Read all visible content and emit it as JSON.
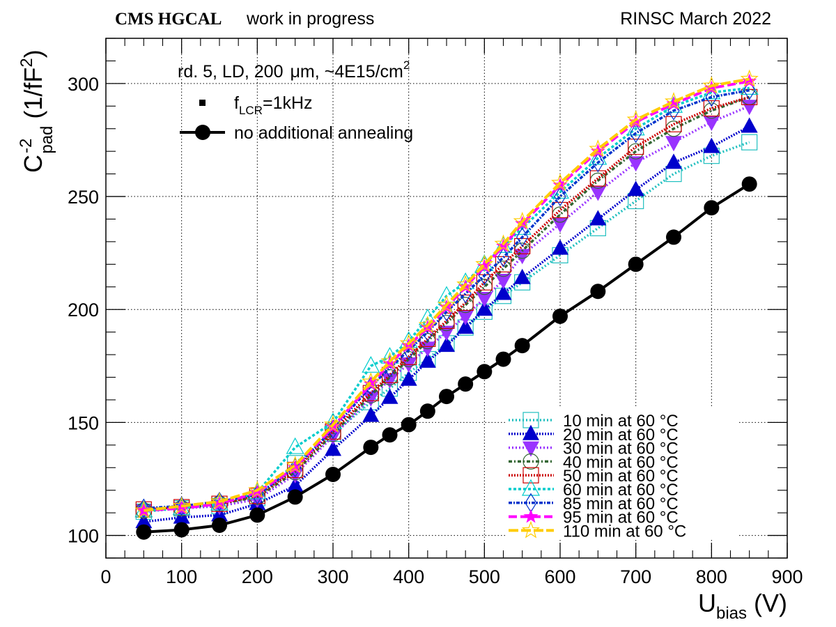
{
  "header": {
    "experiment": "CMS HGCAL",
    "status": "work in progress",
    "right": "RINSC March 2022"
  },
  "info": {
    "sample_pre": "rd. 5, LD, 200",
    "sample_mid": "μm, ~4E15/cm",
    "sample_sup": "2",
    "freq_f": "f",
    "freq_sub": "LCR",
    "freq_val": "=1kHz",
    "ref_label": "no additional annealing"
  },
  "chart_data": {
    "type": "line",
    "xlabel": {
      "main": "U",
      "sub": "bias",
      "unit": " (V)"
    },
    "ylabel": {
      "main": "C",
      "sup": "-2",
      "sub": "pad",
      "unit_pre": " (1/fF",
      "unit_sup": "2",
      "unit_post": ")"
    },
    "xlim": [
      0,
      900
    ],
    "ylim": [
      90,
      320
    ],
    "x_ticks": [
      "0",
      "100",
      "200",
      "300",
      "400",
      "500",
      "600",
      "700",
      "800",
      "900"
    ],
    "y_ticks": [
      "100",
      "150",
      "200",
      "250",
      "300"
    ],
    "grid": true,
    "legend_position": "bottom-right",
    "reference": {
      "color": "#000000",
      "x": [
        50,
        100,
        150,
        200,
        250,
        300,
        350,
        375,
        400,
        425,
        450,
        475,
        500,
        525,
        550,
        600,
        650,
        700,
        750,
        800,
        850
      ],
      "y": [
        101.5,
        102.5,
        104.5,
        109,
        117,
        127,
        139,
        144.5,
        149,
        155,
        161.5,
        167,
        172.5,
        178,
        184,
        197,
        208,
        220,
        232,
        245,
        255.5
      ]
    },
    "series": [
      {
        "name": "10 min at 60 °C",
        "color": "#1fbfbf",
        "marker": "square",
        "x": [
          50,
          100,
          150,
          200,
          250,
          300,
          350,
          375,
          400,
          425,
          450,
          475,
          500,
          525,
          550,
          600,
          650,
          700,
          750,
          800,
          850
        ],
        "y": [
          110.5,
          112,
          113,
          116.5,
          132,
          145,
          159,
          165,
          172,
          178,
          185,
          192,
          199,
          206,
          212,
          224,
          236,
          248,
          260,
          268,
          274
        ]
      },
      {
        "name": "20 min at 60 °C",
        "color": "#0000cc",
        "marker": "triangle-up",
        "x": [
          50,
          100,
          150,
          200,
          250,
          300,
          350,
          375,
          400,
          425,
          450,
          475,
          500,
          525,
          550,
          600,
          650,
          700,
          750,
          800,
          850
        ],
        "y": [
          106,
          108,
          109,
          114,
          122,
          138,
          153,
          161,
          169,
          177,
          184,
          192,
          200,
          207,
          214,
          227,
          240,
          253,
          265,
          272,
          281
        ]
      },
      {
        "name": "30 min at 60 °C",
        "color": "#9933ff",
        "marker": "triangle-down",
        "x": [
          50,
          100,
          150,
          200,
          250,
          300,
          350,
          375,
          400,
          425,
          450,
          475,
          500,
          525,
          550,
          600,
          650,
          700,
          750,
          800,
          850
        ],
        "y": [
          111,
          112,
          113,
          116,
          127,
          144,
          161,
          169,
          176,
          183,
          190,
          197,
          205,
          213,
          224,
          238,
          252,
          265,
          274,
          283,
          290
        ]
      },
      {
        "name": "40 min at 60 °C",
        "color": "#336633",
        "marker": "circle-open",
        "x": [
          50,
          100,
          150,
          200,
          250,
          300,
          350,
          375,
          400,
          425,
          450,
          475,
          500,
          525,
          550,
          600,
          650,
          700,
          750,
          800,
          850
        ],
        "y": [
          111,
          112,
          114,
          117,
          128,
          145,
          162,
          170,
          178,
          186,
          194,
          202,
          210,
          218,
          226,
          242,
          257,
          270,
          280,
          288,
          294
        ]
      },
      {
        "name": "50 min at 60 °C",
        "color": "#cc0000",
        "marker": "square-open",
        "x": [
          50,
          100,
          150,
          200,
          250,
          300,
          350,
          375,
          400,
          425,
          450,
          475,
          500,
          525,
          550,
          600,
          650,
          700,
          750,
          800,
          850
        ],
        "y": [
          111.5,
          112.5,
          114,
          117.5,
          129,
          146,
          163,
          171,
          179,
          187,
          195,
          203,
          212,
          220,
          228,
          244,
          258,
          272,
          282,
          289,
          294
        ]
      },
      {
        "name": "60 min at 60 °C",
        "color": "#00cccc",
        "marker": "triangle-open",
        "x": [
          50,
          100,
          150,
          200,
          250,
          300,
          350,
          375,
          400,
          425,
          450,
          475,
          500,
          525,
          550,
          600,
          650,
          700,
          750,
          800,
          850
        ],
        "y": [
          111,
          112,
          114,
          119,
          139,
          150,
          175,
          179,
          186,
          196,
          206,
          212,
          220,
          228,
          236,
          252,
          267,
          280,
          290,
          296,
          298
        ]
      },
      {
        "name": "85 min at 60 °C",
        "color": "#0033cc",
        "marker": "diamond-open",
        "x": [
          50,
          100,
          150,
          200,
          250,
          300,
          350,
          375,
          400,
          425,
          450,
          475,
          500,
          525,
          550,
          600,
          650,
          700,
          750,
          800,
          850
        ],
        "y": [
          112,
          113,
          115,
          118,
          130,
          147,
          166,
          174,
          182,
          190,
          199,
          207,
          215,
          223,
          232,
          250,
          265,
          278,
          288,
          294,
          297
        ]
      },
      {
        "name": "95 min at 60 °C",
        "color": "#ff00ff",
        "marker": "star",
        "x": [
          50,
          100,
          150,
          200,
          250,
          300,
          350,
          375,
          400,
          425,
          450,
          475,
          500,
          525,
          550,
          600,
          650,
          700,
          750,
          800,
          850
        ],
        "y": [
          111,
          112,
          114,
          119,
          130,
          148,
          167,
          176,
          184,
          192,
          201,
          210,
          219,
          228,
          238,
          255,
          270,
          283,
          291,
          298,
          301
        ]
      },
      {
        "name": "110 min at 60 °C",
        "color": "#ffcc00",
        "marker": "star-open",
        "x": [
          50,
          100,
          150,
          200,
          250,
          300,
          350,
          375,
          400,
          425,
          450,
          475,
          500,
          525,
          550,
          600,
          650,
          700,
          750,
          800,
          850
        ],
        "y": [
          111,
          113,
          115,
          120,
          131,
          149,
          168,
          177,
          185,
          193,
          202,
          211,
          220,
          229,
          239,
          256,
          271,
          284,
          292,
          299,
          302
        ]
      }
    ]
  }
}
